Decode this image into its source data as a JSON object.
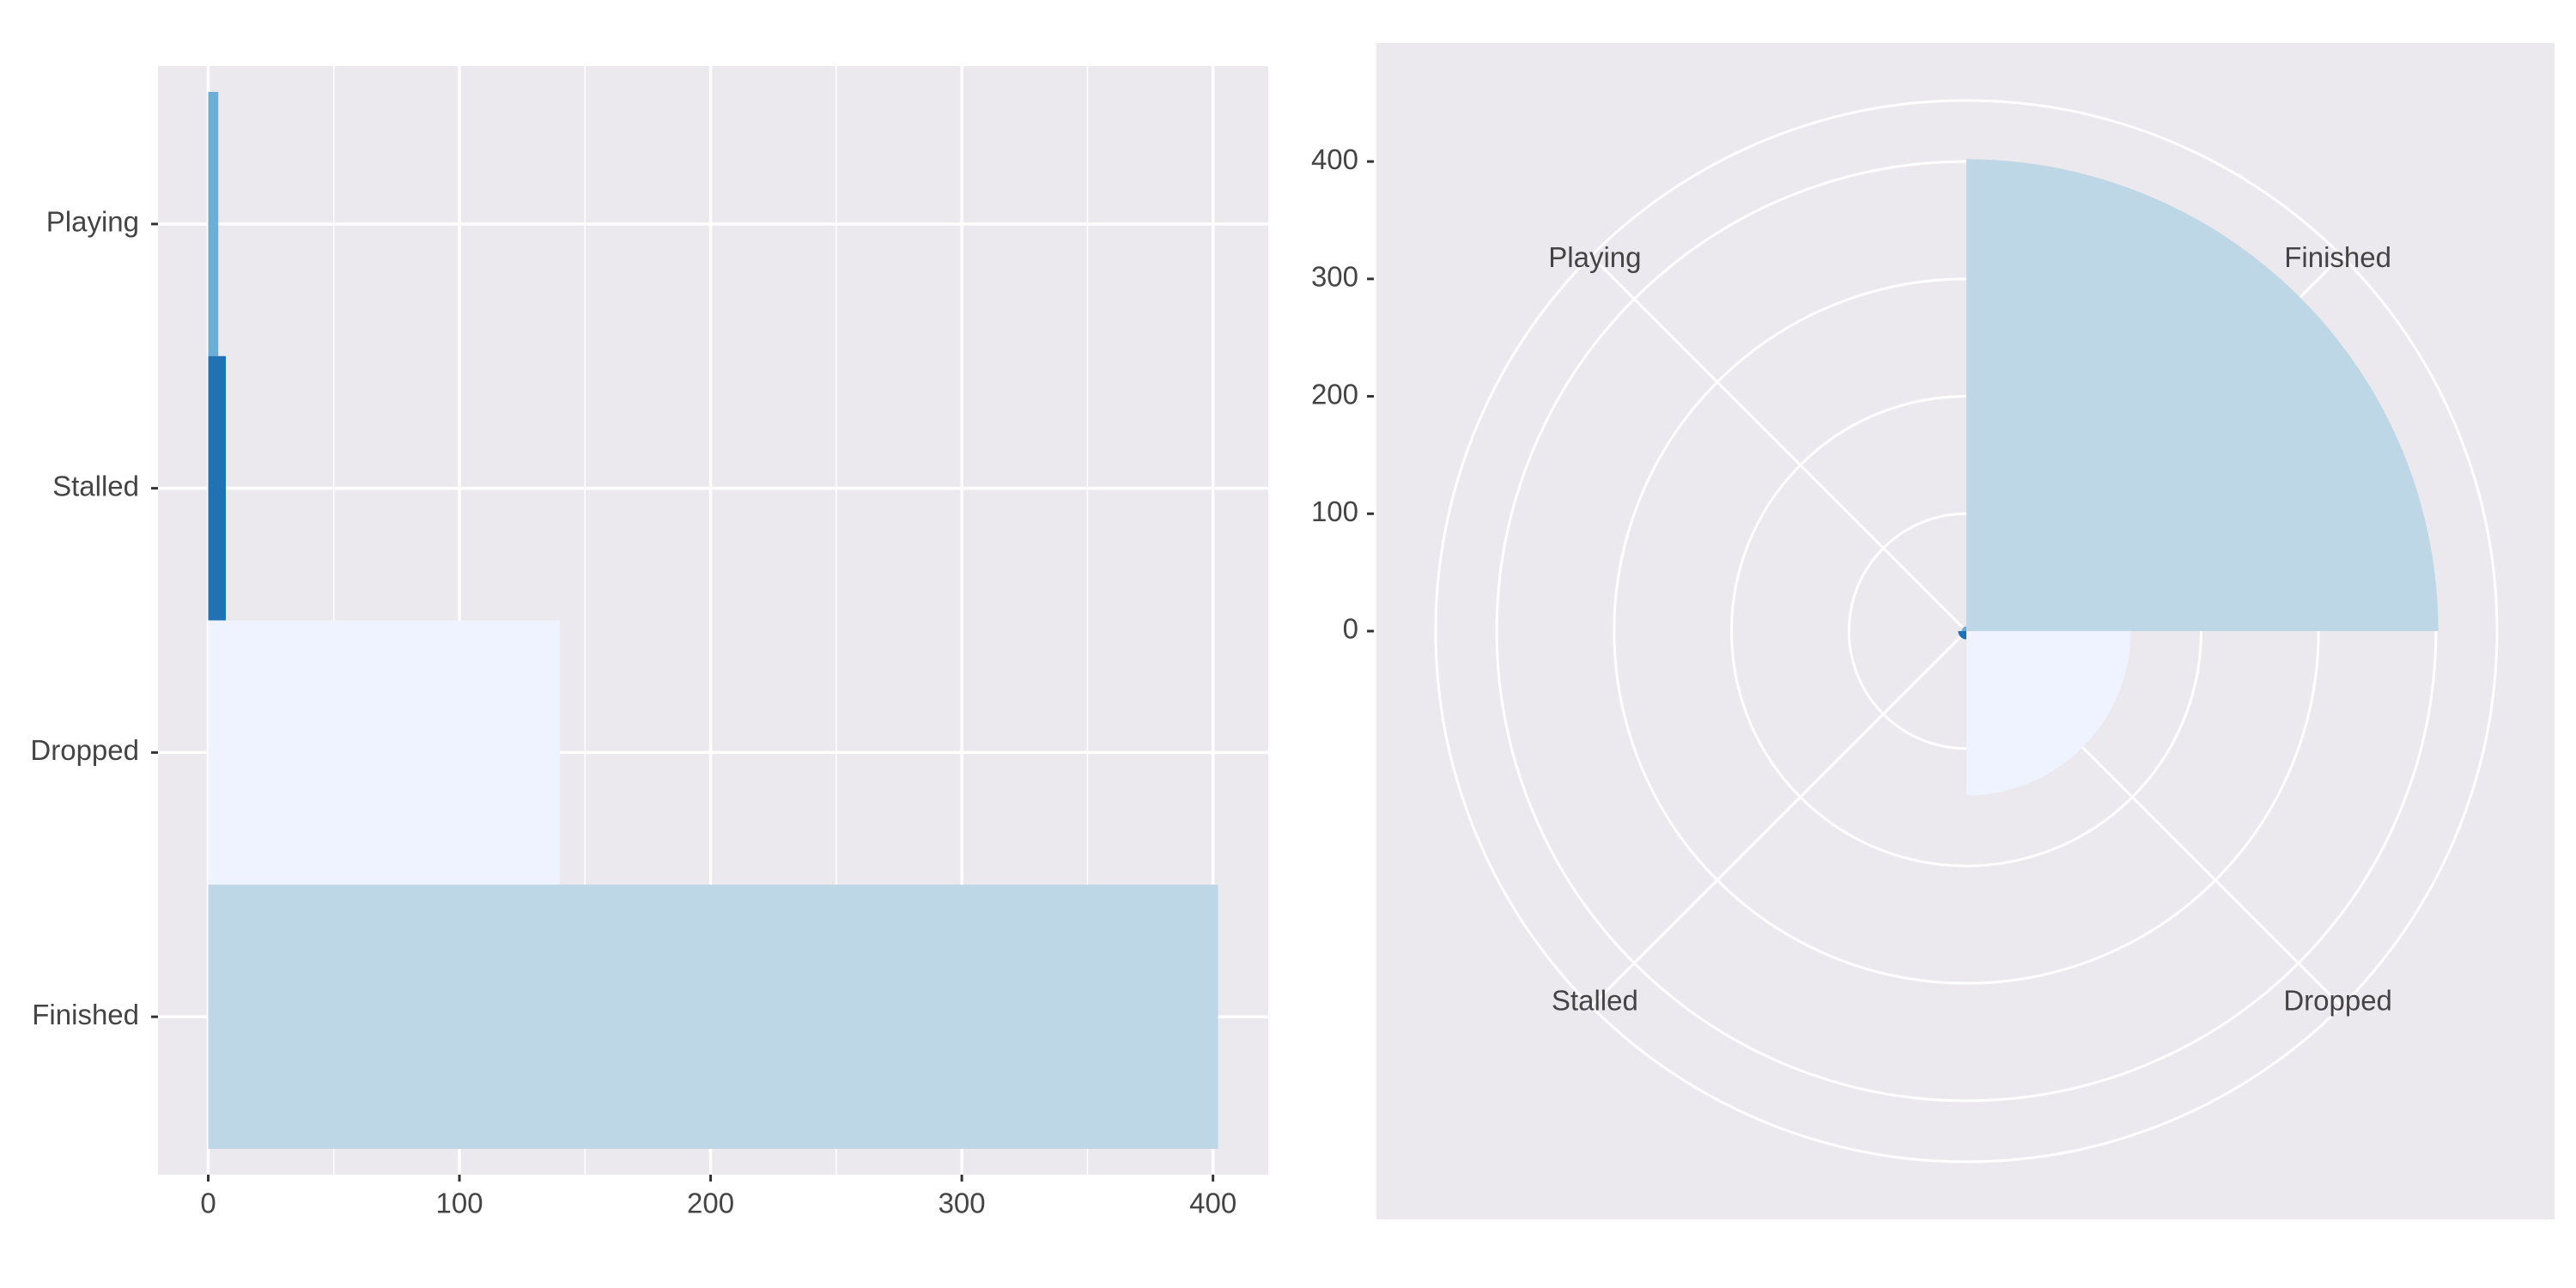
{
  "chart_data": [
    {
      "type": "hbar",
      "categories": [
        "Playing",
        "Stalled",
        "Dropped",
        "Finished"
      ],
      "values": [
        4,
        7,
        140,
        402
      ],
      "colors": [
        "#6baed6",
        "#2171b5",
        "#eff3ff",
        "#bdd7e7"
      ],
      "xlim": [
        -20,
        422
      ],
      "xticks": [
        0,
        100,
        200,
        300,
        400
      ],
      "grid": true
    },
    {
      "type": "polar",
      "categories": [
        "Finished",
        "Dropped",
        "Stalled",
        "Playing"
      ],
      "values": [
        402,
        140,
        7,
        4
      ],
      "colors": [
        "#bdd7e7",
        "#eff3ff",
        "#2171b5",
        "#6baed6"
      ],
      "rlim": [
        0,
        452
      ],
      "rticks": [
        0,
        100,
        200,
        300,
        400
      ],
      "grid": true
    }
  ]
}
